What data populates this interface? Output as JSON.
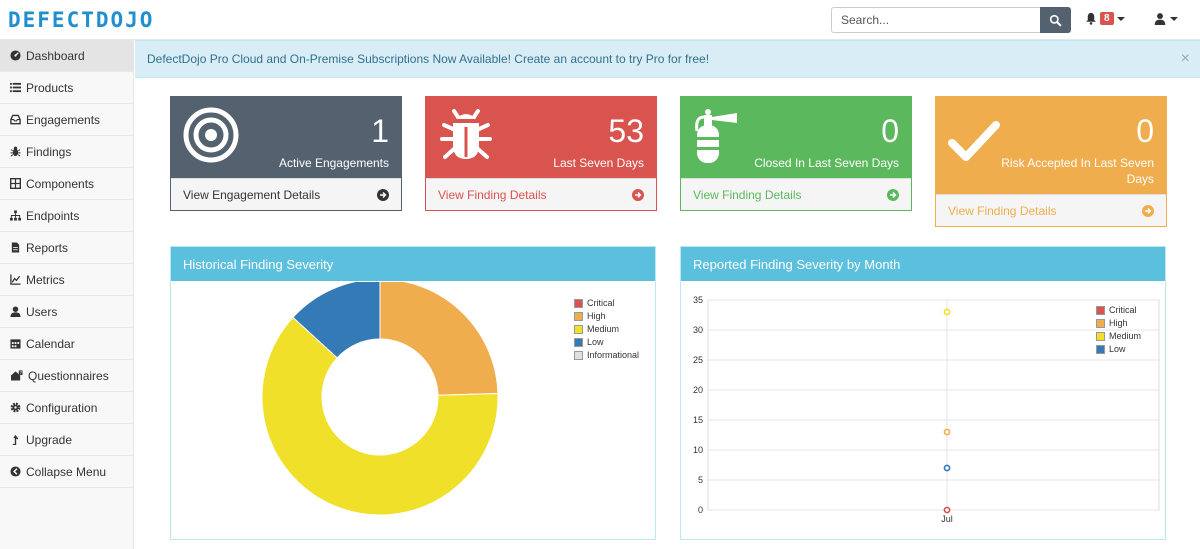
{
  "app": {
    "logo": "DEFECTDOJO",
    "search_placeholder": "Search...",
    "notifications_count": "8"
  },
  "sidebar": {
    "items": [
      {
        "label": "Dashboard",
        "icon": "dashboard-icon"
      },
      {
        "label": "Products",
        "icon": "list-icon"
      },
      {
        "label": "Engagements",
        "icon": "inbox-icon"
      },
      {
        "label": "Findings",
        "icon": "bug-icon"
      },
      {
        "label": "Components",
        "icon": "table-icon"
      },
      {
        "label": "Endpoints",
        "icon": "sitemap-icon"
      },
      {
        "label": "Reports",
        "icon": "file-icon"
      },
      {
        "label": "Metrics",
        "icon": "chart-icon"
      },
      {
        "label": "Users",
        "icon": "user-icon"
      },
      {
        "label": "Calendar",
        "icon": "calendar-icon"
      },
      {
        "label": "Questionnaires",
        "icon": "questionnaire-icon"
      },
      {
        "label": "Configuration",
        "icon": "gear-icon"
      },
      {
        "label": "Upgrade",
        "icon": "upgrade-icon"
      },
      {
        "label": "Collapse Menu",
        "icon": "collapse-icon"
      }
    ]
  },
  "alert": {
    "text": "DefectDojo Pro Cloud and On-Premise Subscriptions Now Available! Create an account to try Pro for free!",
    "close": "×"
  },
  "stats": [
    {
      "number": "1",
      "label": "Active Engagements",
      "link": "View Engagement Details",
      "icon": "target-icon",
      "color": "#54616f"
    },
    {
      "number": "53",
      "label": "Last Seven Days",
      "link": "View Finding Details",
      "icon": "bug-icon",
      "color": "#d9534f"
    },
    {
      "number": "0",
      "label": "Closed In Last Seven Days",
      "link": "View Finding Details",
      "icon": "fire-extinguisher-icon",
      "color": "#5cb85c"
    },
    {
      "number": "0",
      "label": "Risk Accepted In Last Seven Days",
      "link": "View Finding Details",
      "icon": "check-icon",
      "color": "#f0ad4e"
    }
  ],
  "panels": {
    "pie_title": "Historical Finding Severity",
    "line_title": "Reported Finding Severity by Month"
  },
  "chart_data": [
    {
      "type": "pie",
      "title": "Historical Finding Severity",
      "categories": [
        "Critical",
        "High",
        "Medium",
        "Low",
        "Informational"
      ],
      "values": [
        0,
        13,
        33,
        7,
        0
      ],
      "colors": [
        "#d9534f",
        "#f0ad4e",
        "#f0e02a",
        "#337ab7",
        "#e0e0e0"
      ],
      "donut": true,
      "legend": "top-right"
    },
    {
      "type": "scatter",
      "title": "Reported Finding Severity by Month",
      "x": [
        "Jul"
      ],
      "series": [
        {
          "name": "Critical",
          "values": [
            0
          ],
          "color": "#d9534f"
        },
        {
          "name": "High",
          "values": [
            13
          ],
          "color": "#f0ad4e"
        },
        {
          "name": "Medium",
          "values": [
            33
          ],
          "color": "#f0e02a"
        },
        {
          "name": "Low",
          "values": [
            7
          ],
          "color": "#337ab7"
        }
      ],
      "ylim": [
        0,
        35
      ],
      "yticks": [
        "0",
        "5",
        "10",
        "15",
        "20",
        "25",
        "30",
        "35"
      ],
      "grid": true,
      "legend": "top-right"
    }
  ]
}
